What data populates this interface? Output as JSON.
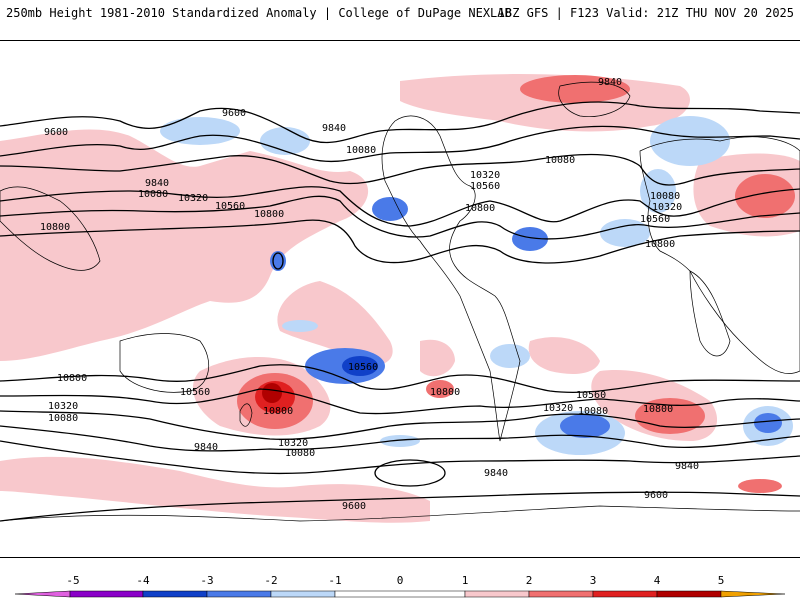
{
  "header": {
    "title_left": "250mb Height 1981-2010 Standardized Anomaly | College of DuPage NEXLAB",
    "title_right": "18Z GFS | F123 Valid: 21Z THU NOV 20 2025"
  },
  "colors": {
    "neg5": "#e060e0",
    "neg4": "#8a00c8",
    "neg3": "#1040c8",
    "neg2": "#4a7ae8",
    "neg1": "#bcd8f8",
    "zero": "#ffffff",
    "pos1": "#f8c8cc",
    "pos2": "#f07070",
    "pos3": "#e02020",
    "pos4": "#b00000",
    "pos5": "#f0a000",
    "contour": "#000000",
    "coast": "#000000"
  },
  "contour_labels": [
    {
      "text": "9840",
      "id": "c1"
    },
    {
      "text": "9600",
      "id": "c2"
    },
    {
      "text": "9600",
      "id": "c3"
    },
    {
      "text": "9840",
      "id": "c4"
    },
    {
      "text": "10080",
      "id": "c5"
    },
    {
      "text": "9840",
      "id": "c6"
    },
    {
      "text": "10080",
      "id": "c7"
    },
    {
      "text": "10320",
      "id": "c8"
    },
    {
      "text": "10560",
      "id": "c9"
    },
    {
      "text": "10800",
      "id": "c10"
    },
    {
      "text": "10800",
      "id": "c11"
    },
    {
      "text": "10320",
      "id": "c12"
    },
    {
      "text": "10560",
      "id": "c13"
    },
    {
      "text": "10800",
      "id": "c14"
    },
    {
      "text": "10080",
      "id": "c15"
    },
    {
      "text": "10080",
      "id": "c16"
    },
    {
      "text": "10320",
      "id": "c17"
    },
    {
      "text": "10560",
      "id": "c18"
    },
    {
      "text": "10800",
      "id": "c19"
    },
    {
      "text": "10800",
      "id": "c20"
    },
    {
      "text": "10560",
      "id": "c21"
    },
    {
      "text": "10320",
      "id": "c22"
    },
    {
      "text": "10080",
      "id": "c23"
    },
    {
      "text": "10800",
      "id": "c24"
    },
    {
      "text": "10320",
      "id": "c25"
    },
    {
      "text": "10080",
      "id": "c26"
    },
    {
      "text": "9840",
      "id": "c27"
    },
    {
      "text": "10560",
      "id": "c28"
    },
    {
      "text": "10800",
      "id": "c29"
    },
    {
      "text": "10560",
      "id": "c30"
    },
    {
      "text": "10320",
      "id": "c31"
    },
    {
      "text": "10080",
      "id": "c32"
    },
    {
      "text": "10800",
      "id": "c33"
    },
    {
      "text": "9840",
      "id": "c34"
    },
    {
      "text": "9840",
      "id": "c35"
    },
    {
      "text": "9600",
      "id": "c36"
    },
    {
      "text": "9600",
      "id": "c37"
    }
  ],
  "colorbar": {
    "ticks": [
      "-5",
      "-4",
      "-3",
      "-2",
      "-1",
      "0",
      "1",
      "2",
      "3",
      "4",
      "5"
    ]
  }
}
